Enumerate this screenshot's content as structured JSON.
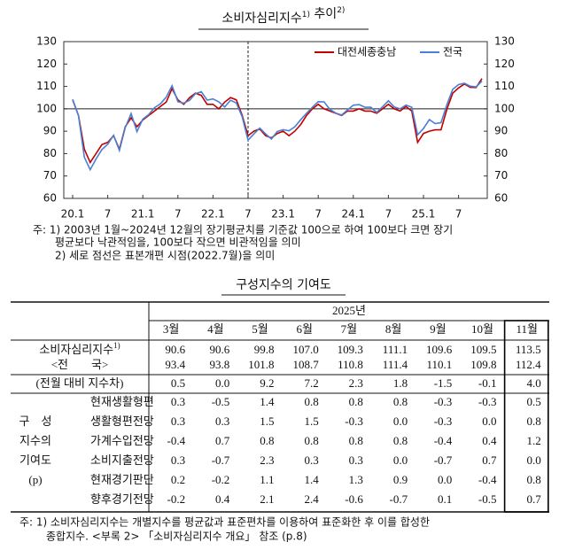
{
  "chart_data": {
    "type": "line",
    "title": [
      {
        "text": "소비자심리지수",
        "sup": "1)"
      },
      {
        "text": " 추이",
        "sup": "2)"
      }
    ],
    "categories": [
      "20.1",
      null,
      null,
      null,
      null,
      null,
      "7",
      null,
      null,
      null,
      null,
      null,
      "21.1",
      null,
      null,
      null,
      null,
      null,
      "7",
      null,
      null,
      null,
      null,
      null,
      "22.1",
      null,
      null,
      null,
      null,
      null,
      "7",
      null,
      null,
      null,
      null,
      null,
      "23.1",
      null,
      null,
      null,
      null,
      null,
      "7",
      null,
      null,
      null,
      null,
      null,
      "24.1",
      null,
      null,
      null,
      null,
      null,
      "7",
      null,
      null,
      null,
      null,
      null,
      "25.1",
      null,
      null,
      null,
      null,
      null,
      "7",
      null,
      null,
      null,
      null
    ],
    "series": [
      {
        "name": "대전세종충남",
        "color": "#c00000",
        "values": [
          104,
          97,
          82,
          76,
          80,
          84,
          85,
          88,
          82,
          92,
          96,
          92,
          95,
          97,
          99,
          101,
          103,
          109,
          104,
          102,
          105,
          107,
          106,
          102,
          102,
          100,
          103,
          105,
          104,
          97,
          88,
          90,
          91,
          88,
          87,
          89,
          90,
          88,
          90,
          93,
          97,
          100,
          102,
          100,
          99,
          98,
          97,
          99,
          99,
          100,
          99,
          99,
          98,
          100,
          102,
          100,
          99,
          101,
          99,
          85,
          89,
          90,
          90.6,
          90.6,
          99.8,
          107.0,
          109.3,
          111.1,
          109.6,
          109.5,
          113.5
        ]
      },
      {
        "name": "전국",
        "color": "#4a7fd4",
        "values": [
          104.2,
          96.9,
          78.4,
          72.8,
          77.6,
          81.8,
          84.2,
          88.2,
          81.4,
          91.6,
          97.9,
          89.8,
          95.4,
          97.4,
          100.5,
          102.2,
          105.2,
          110.3,
          103.2,
          102.5,
          103.8,
          106.8,
          107.6,
          103.9,
          104.4,
          103.1,
          100.8,
          103.8,
          102.6,
          96.4,
          86.0,
          88.8,
          91.4,
          88.8,
          86.5,
          89.9,
          90.7,
          90.2,
          92.0,
          95.1,
          98.0,
          100.7,
          103.2,
          103.1,
          99.7,
          98.1,
          97.2,
          99.5,
          101.6,
          101.9,
          100.7,
          100.7,
          98.4,
          100.9,
          103.6,
          100.8,
          100.0,
          101.7,
          100.7,
          88.4,
          91.2,
          95.2,
          93.4,
          93.8,
          101.8,
          108.7,
          110.8,
          111.4,
          110.1,
          109.8,
          112.4
        ]
      }
    ],
    "ylim": [
      60,
      130
    ],
    "yticks": [
      60,
      70,
      80,
      90,
      100,
      110,
      120,
      130
    ],
    "y2lim": [
      60,
      130
    ],
    "y2ticks": [
      60,
      70,
      80,
      90,
      100,
      110,
      120,
      130
    ],
    "reference_y": 100,
    "split_index": 30,
    "legend": "top-right",
    "grid": false
  },
  "chart_notes": [
    "주: 1) 2003년 1월~2024년 12월의 장기평균치를 기준값 100으로 하여 100보다 크면 장기",
    "평균보다 낙관적임을, 100보다 작으면 비관적임을 의미",
    "2) 세로 점선은 표본개편 시점(2022.7월)을 의미"
  ],
  "table": {
    "title": "구성지수의 기여도",
    "year": "2025년",
    "months": [
      "3월",
      "4월",
      "5월",
      "6월",
      "7월",
      "8월",
      "9월",
      "10월",
      "11월"
    ],
    "rows": [
      {
        "label": "소비자심리지수",
        "sup": "1)",
        "values": [
          "90.6",
          "90.6",
          "99.8",
          "107.0",
          "109.3",
          "111.1",
          "109.6",
          "109.5",
          "113.5"
        ]
      },
      {
        "label": "<전　　국>",
        "values": [
          "93.4",
          "93.8",
          "101.8",
          "108.7",
          "110.8",
          "111.4",
          "110.1",
          "109.8",
          "112.4"
        ]
      },
      {
        "label": "(전월 대비 지수차)",
        "values": [
          "0.5",
          "0.0",
          "9.2",
          "7.2",
          "2.3",
          "1.8",
          "-1.5",
          "-0.1",
          "4.0"
        ]
      }
    ],
    "group_label": [
      "구　성",
      "지수의",
      "기여도",
      "(p)"
    ],
    "sub_rows": [
      {
        "label": "현재생활형편",
        "values": [
          "0.3",
          "-0.5",
          "1.4",
          "0.8",
          "0.8",
          "0.8",
          "-0.3",
          "-0.3",
          "0.5"
        ]
      },
      {
        "label": "생활형편전망",
        "values": [
          "0.3",
          "0.3",
          "1.5",
          "1.5",
          "-0.3",
          "0.0",
          "-0.3",
          "0.0",
          "0.8"
        ]
      },
      {
        "label": "가계수입전망",
        "values": [
          "-0.4",
          "0.7",
          "0.8",
          "0.8",
          "0.8",
          "0.8",
          "-0.4",
          "0.4",
          "1.2"
        ]
      },
      {
        "label": "소비지출전망",
        "values": [
          "0.3",
          "-0.7",
          "2.3",
          "0.3",
          "0.3",
          "0.0",
          "-0.7",
          "0.7",
          "0.0"
        ]
      },
      {
        "label": "현재경기판단",
        "values": [
          "0.2",
          "-0.2",
          "1.1",
          "1.4",
          "1.3",
          "0.9",
          "0.0",
          "-0.4",
          "0.8"
        ]
      },
      {
        "label": "향후경기전망",
        "values": [
          "-0.2",
          "0.4",
          "2.1",
          "2.4",
          "-0.6",
          "-0.7",
          "0.1",
          "-0.5",
          "0.7"
        ]
      }
    ]
  },
  "table_notes": [
    "주: 1) 소비자심리지수는 개별지수를 평균값과 표준편차를 이용하여 표준화한 후 이를 합성한",
    "종합지수. <부록 2> 「소비자심리지수 개요」 참조 (p.8)"
  ]
}
